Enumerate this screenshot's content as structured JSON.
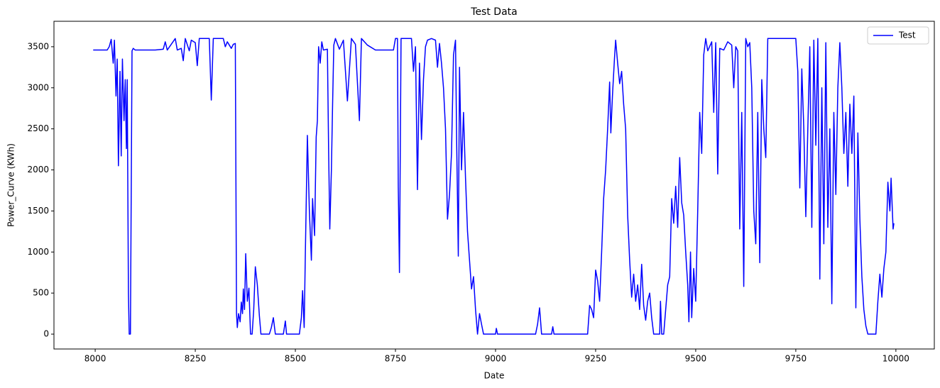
{
  "chart_data": {
    "type": "line",
    "title": "Test Data",
    "x_label": "Date",
    "y_label": "Power_Curve (KWh)",
    "xlim": [
      7897,
      10096
    ],
    "ylim": [
      -181,
      3810
    ],
    "xticks": [
      8000,
      8250,
      8500,
      8750,
      9000,
      9250,
      9500,
      9750,
      10000
    ],
    "yticks": [
      0,
      500,
      1000,
      1500,
      2000,
      2500,
      3000,
      3500
    ],
    "legend": "upper right",
    "grid": false,
    "x": [
      7995,
      8030,
      8035,
      8040,
      8045,
      8048,
      8052,
      8055,
      8058,
      8062,
      8065,
      8068,
      8072,
      8075,
      8078,
      8080,
      8083,
      8085,
      8088,
      8092,
      8095,
      8100,
      8150,
      8170,
      8175,
      8180,
      8200,
      8205,
      8215,
      8220,
      8225,
      8235,
      8240,
      8250,
      8255,
      8260,
      8285,
      8290,
      8295,
      8320,
      8325,
      8330,
      8340,
      8345,
      8350,
      8353,
      8355,
      8358,
      8362,
      8365,
      8368,
      8370,
      8373,
      8376,
      8380,
      8384,
      8388,
      8392,
      8396,
      8400,
      8405,
      8410,
      8414,
      8420,
      8435,
      8440,
      8445,
      8450,
      8460,
      8470,
      8475,
      8478,
      8510,
      8515,
      8518,
      8522,
      8525,
      8530,
      8535,
      8540,
      8543,
      8548,
      8552,
      8555,
      8558,
      8562,
      8566,
      8570,
      8580,
      8583,
      8586,
      8590,
      8593,
      8596,
      8600,
      8610,
      8620,
      8630,
      8640,
      8650,
      8660,
      8665,
      8680,
      8700,
      8745,
      8750,
      8755,
      8757,
      8760,
      8764,
      8790,
      8795,
      8800,
      8805,
      8810,
      8815,
      8820,
      8825,
      8830,
      8840,
      8850,
      8855,
      8860,
      8865,
      8870,
      8875,
      8880,
      8885,
      8890,
      8895,
      8900,
      8903,
      8907,
      8910,
      8915,
      8920,
      8925,
      8930,
      8935,
      8940,
      8945,
      8950,
      8955,
      8960,
      8965,
      8970,
      9000,
      9002,
      9005,
      9100,
      9105,
      9110,
      9115,
      9140,
      9143,
      9146,
      9230,
      9235,
      9240,
      9245,
      9250,
      9255,
      9260,
      9265,
      9270,
      9275,
      9280,
      9285,
      9288,
      9292,
      9297,
      9300,
      9305,
      9310,
      9315,
      9320,
      9325,
      9330,
      9335,
      9340,
      9345,
      9350,
      9355,
      9360,
      9365,
      9370,
      9375,
      9380,
      9385,
      9390,
      9395,
      9410,
      9412,
      9415,
      9420,
      9425,
      9430,
      9435,
      9440,
      9445,
      9450,
      9455,
      9460,
      9465,
      9470,
      9475,
      9480,
      9483,
      9487,
      9490,
      9495,
      9500,
      9505,
      9510,
      9515,
      9520,
      9525,
      9530,
      9540,
      9545,
      9550,
      9555,
      9560,
      9570,
      9580,
      9590,
      9595,
      9600,
      9605,
      9610,
      9615,
      9620,
      9625,
      9630,
      9635,
      9640,
      9645,
      9650,
      9655,
      9660,
      9665,
      9670,
      9675,
      9680,
      9750,
      9755,
      9760,
      9765,
      9770,
      9775,
      9780,
      9785,
      9790,
      9795,
      9800,
      9805,
      9810,
      9815,
      9820,
      9825,
      9830,
      9835,
      9840,
      9845,
      9850,
      9855,
      9860,
      9865,
      9870,
      9875,
      9880,
      9885,
      9890,
      9895,
      9900,
      9905,
      9910,
      9915,
      9920,
      9925,
      9930,
      9950,
      9955,
      9960,
      9965,
      9970,
      9975,
      9980,
      9985,
      9988,
      9993,
      9995
    ],
    "series": [
      {
        "name": "Test",
        "color": "#0000ff",
        "values": [
          3460,
          3460,
          3500,
          3590,
          3300,
          3580,
          2900,
          3350,
          2050,
          3200,
          2170,
          3350,
          2600,
          3100,
          2260,
          3100,
          500,
          0,
          0,
          3450,
          3480,
          3460,
          3460,
          3470,
          3560,
          3460,
          3600,
          3460,
          3480,
          3330,
          3600,
          3450,
          3580,
          3550,
          3270,
          3600,
          3600,
          2850,
          3600,
          3600,
          3500,
          3560,
          3480,
          3530,
          3540,
          250,
          80,
          250,
          150,
          390,
          250,
          550,
          300,
          980,
          400,
          560,
          0,
          0,
          300,
          820,
          600,
          230,
          0,
          0,
          0,
          80,
          200,
          0,
          0,
          0,
          160,
          0,
          0,
          200,
          530,
          80,
          1000,
          2420,
          1500,
          900,
          1650,
          1200,
          2400,
          2600,
          3500,
          3300,
          3560,
          3460,
          3470,
          2260,
          1280,
          2000,
          2800,
          3520,
          3600,
          3470,
          3580,
          2840,
          3600,
          3530,
          2600,
          3600,
          3520,
          3460,
          3460,
          3600,
          3600,
          1800,
          750,
          3600,
          3600,
          3200,
          3500,
          1760,
          3300,
          2370,
          3100,
          3500,
          3580,
          3600,
          3580,
          3250,
          3540,
          3300,
          3000,
          2500,
          1400,
          1700,
          2200,
          3400,
          3580,
          2300,
          950,
          3250,
          2000,
          2700,
          1900,
          1250,
          900,
          550,
          700,
          300,
          0,
          250,
          120,
          0,
          0,
          70,
          0,
          0,
          120,
          320,
          0,
          0,
          90,
          0,
          0,
          350,
          300,
          200,
          780,
          650,
          400,
          1000,
          1650,
          2000,
          2500,
          3070,
          2450,
          2900,
          3350,
          3580,
          3300,
          3050,
          3200,
          2800,
          2500,
          1450,
          900,
          450,
          730,
          400,
          600,
          300,
          850,
          350,
          170,
          400,
          500,
          200,
          0,
          0,
          400,
          0,
          0,
          300,
          600,
          700,
          1650,
          1350,
          1800,
          1300,
          2150,
          1600,
          1450,
          1000,
          600,
          150,
          1000,
          200,
          800,
          400,
          1500,
          2700,
          2200,
          3400,
          3600,
          3450,
          3560,
          2700,
          3550,
          1950,
          3480,
          3460,
          3560,
          3520,
          3000,
          3500,
          3450,
          1280,
          2700,
          580,
          3600,
          3500,
          3550,
          3000,
          1500,
          1100,
          2700,
          870,
          3100,
          2500,
          2150,
          3600,
          3600,
          3200,
          1780,
          3230,
          2500,
          1430,
          2500,
          3500,
          1300,
          3580,
          2300,
          3600,
          670,
          3000,
          1100,
          3550,
          1300,
          2500,
          370,
          2700,
          1700,
          3000,
          3550,
          3000,
          2200,
          2700,
          1800,
          2800,
          2200,
          2900,
          320,
          2450,
          1400,
          700,
          300,
          100,
          0,
          0,
          400,
          730,
          450,
          800,
          1000,
          1850,
          1500,
          1900,
          1280,
          1350
        ]
      }
    ]
  }
}
